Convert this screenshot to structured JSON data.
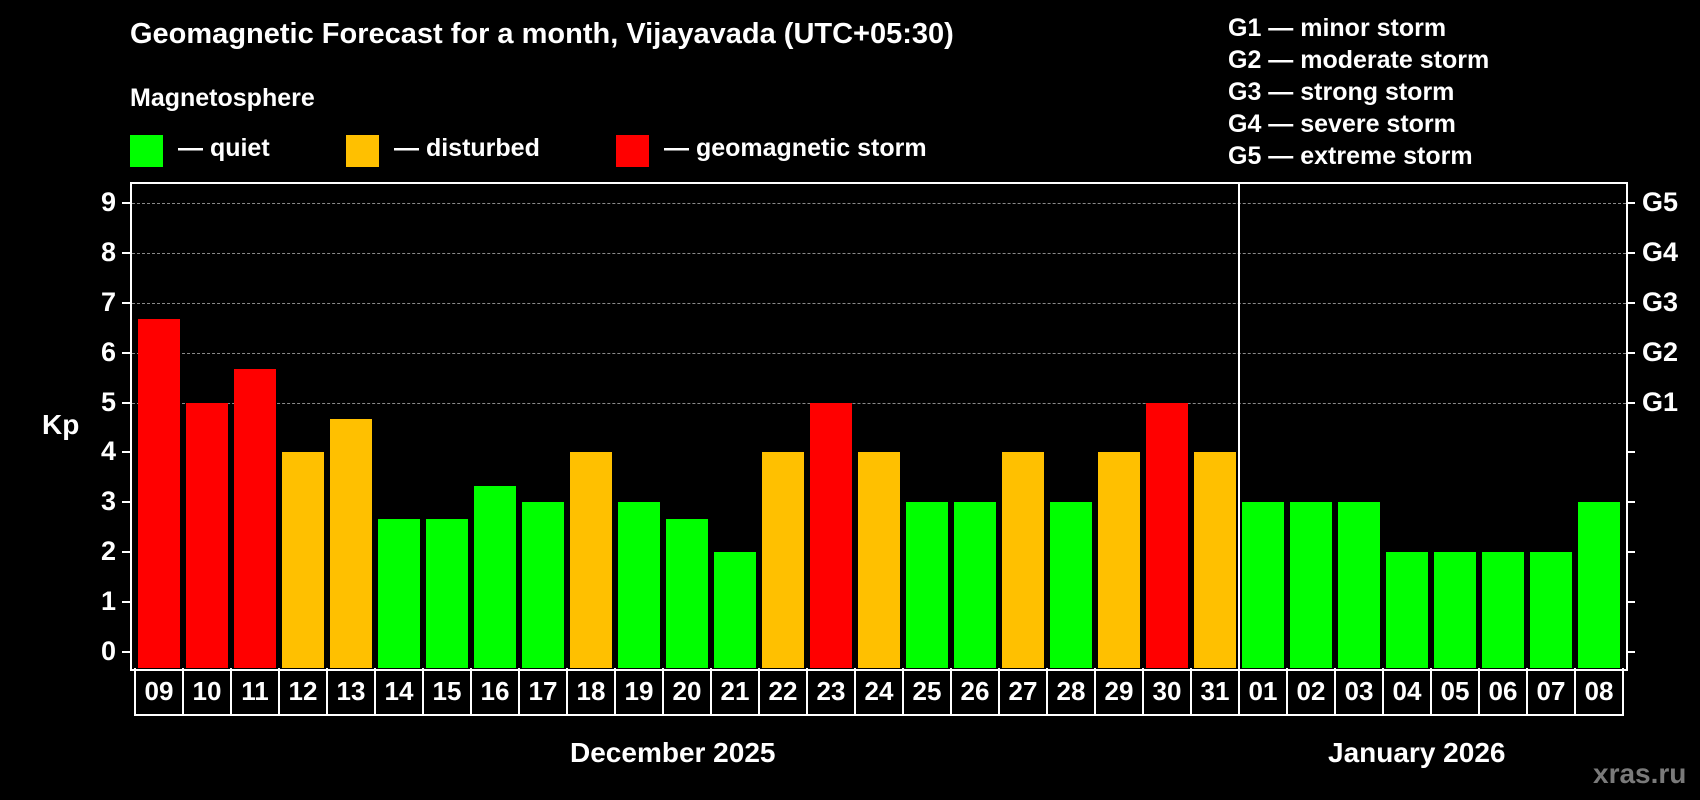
{
  "header": {
    "title": "Geomagnetic Forecast for a month, Vijayavada (UTC+05:30)",
    "subtitle": "Magnetosphere"
  },
  "legend": {
    "items": [
      {
        "label": "— quiet",
        "color": "#00FF00"
      },
      {
        "label": "— disturbed",
        "color": "#FFC000"
      },
      {
        "label": "— geomagnetic storm",
        "color": "#FF0000"
      }
    ]
  },
  "storm_scale": {
    "items": [
      "G1 — minor storm",
      "G2 — moderate storm",
      "G3 — strong storm",
      "G4 — severe storm",
      "G5 — extreme storm"
    ]
  },
  "axes": {
    "ylabel": "Kp",
    "yticks": [
      "0",
      "1",
      "2",
      "3",
      "4",
      "5",
      "6",
      "7",
      "8",
      "9"
    ],
    "right_ticks": [
      {
        "kp": 5,
        "label": "G1"
      },
      {
        "kp": 6,
        "label": "G2"
      },
      {
        "kp": 7,
        "label": "G3"
      },
      {
        "kp": 8,
        "label": "G4"
      },
      {
        "kp": 9,
        "label": "G5"
      }
    ],
    "months": [
      "December 2025",
      "January 2026"
    ]
  },
  "watermark": "xras.ru",
  "chart_data": {
    "type": "bar",
    "title": "Geomagnetic Forecast for a month, Vijayavada (UTC+05:30)",
    "xlabel": "",
    "ylabel": "Kp",
    "ylim": [
      0,
      9
    ],
    "grid": true,
    "categories": [
      "09",
      "10",
      "11",
      "12",
      "13",
      "14",
      "15",
      "16",
      "17",
      "18",
      "19",
      "20",
      "21",
      "22",
      "23",
      "24",
      "25",
      "26",
      "27",
      "28",
      "29",
      "30",
      "31",
      "01",
      "02",
      "03",
      "04",
      "05",
      "06",
      "07",
      "08"
    ],
    "category_months": [
      "December 2025",
      "December 2025",
      "December 2025",
      "December 2025",
      "December 2025",
      "December 2025",
      "December 2025",
      "December 2025",
      "December 2025",
      "December 2025",
      "December 2025",
      "December 2025",
      "December 2025",
      "December 2025",
      "December 2025",
      "December 2025",
      "December 2025",
      "December 2025",
      "December 2025",
      "December 2025",
      "December 2025",
      "December 2025",
      "December 2025",
      "January 2026",
      "January 2026",
      "January 2026",
      "January 2026",
      "January 2026",
      "January 2026",
      "January 2026",
      "January 2026"
    ],
    "values": [
      6.67,
      5,
      5.67,
      4,
      4.67,
      2.67,
      2.67,
      3.33,
      3,
      4,
      3,
      2.67,
      2,
      4,
      5,
      4,
      3,
      3,
      4,
      3,
      4,
      5,
      4,
      3,
      3,
      3,
      2,
      2,
      2,
      2,
      3
    ],
    "status": [
      "storm",
      "storm",
      "storm",
      "disturbed",
      "disturbed",
      "quiet",
      "quiet",
      "quiet",
      "quiet",
      "disturbed",
      "quiet",
      "quiet",
      "quiet",
      "disturbed",
      "storm",
      "disturbed",
      "quiet",
      "quiet",
      "disturbed",
      "quiet",
      "disturbed",
      "storm",
      "disturbed",
      "quiet",
      "quiet",
      "quiet",
      "quiet",
      "quiet",
      "quiet",
      "quiet",
      "quiet"
    ],
    "colors": {
      "quiet": "#00FF00",
      "disturbed": "#FFC000",
      "storm": "#FF0000"
    },
    "legend": [
      "quiet",
      "disturbed",
      "geomagnetic storm"
    ],
    "secondary_axis": {
      "5": "G1",
      "6": "G2",
      "7": "G3",
      "8": "G4",
      "9": "G5"
    }
  }
}
